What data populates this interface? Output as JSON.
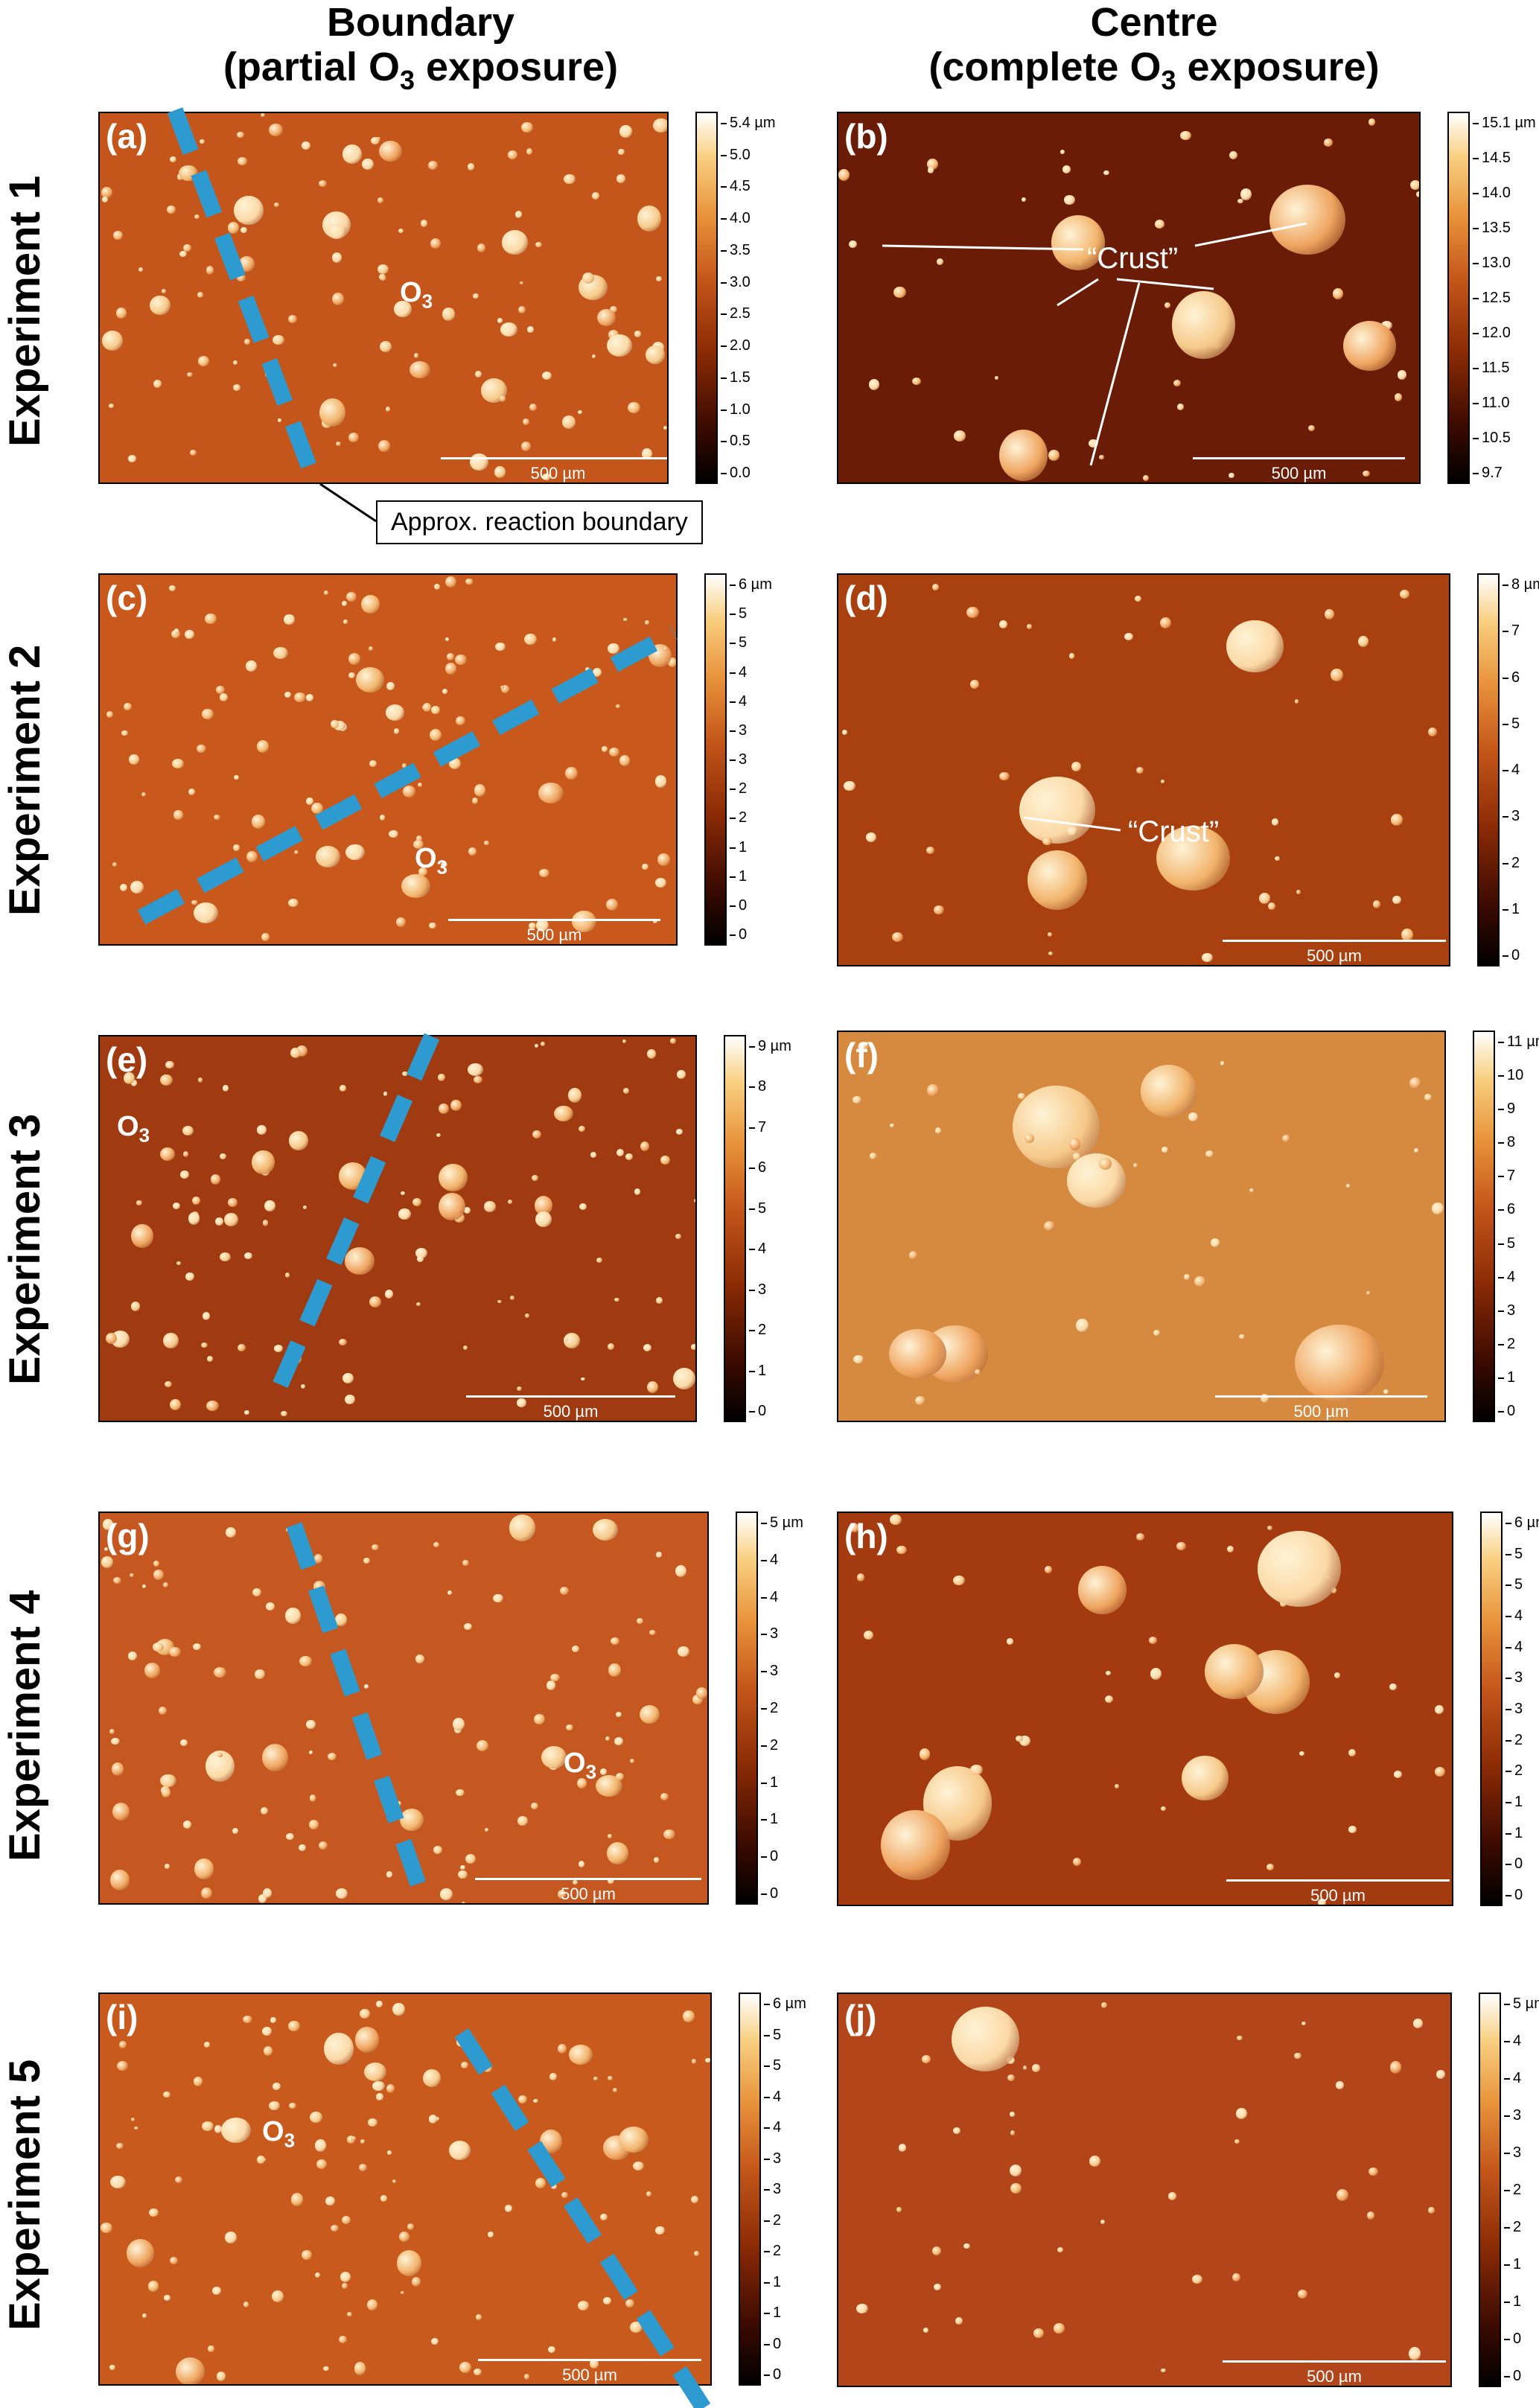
{
  "columns": {
    "left": {
      "line1": "Boundary",
      "line2": "(partial O",
      "sub": "3",
      "line3": " exposure)"
    },
    "right": {
      "line1": "Centre",
      "line2": "(complete O",
      "sub": "3",
      "line3": " exposure)"
    }
  },
  "rows": [
    "Experiment 1",
    "Experiment 2",
    "Experiment 3",
    "Experiment 4",
    "Experiment 5"
  ],
  "annotations": {
    "boundary_label": "Approx. reaction boundary",
    "crust_label": "“Crust”",
    "o3_main": "O",
    "o3_sub": "3"
  },
  "panels": [
    {
      "label": "(a)",
      "scale": "500 µm",
      "cbar_ticks": [
        "5.4 µm",
        "5.0",
        "4.5",
        "4.0",
        "3.5",
        "3.0",
        "2.5",
        "2.0",
        "1.5",
        "1.0",
        "0.5",
        "0.0"
      ],
      "color": "#c4561c"
    },
    {
      "label": "(b)",
      "scale": "500 µm",
      "cbar_ticks": [
        "15.1 µm",
        "14.5",
        "14.0",
        "13.5",
        "13.0",
        "12.5",
        "12.0",
        "11.5",
        "11.0",
        "10.5",
        "9.7"
      ],
      "color": "#6a1c06"
    },
    {
      "label": "(c)",
      "scale": "500 µm",
      "cbar_ticks": [
        "6 µm",
        "5",
        "5",
        "4",
        "4",
        "3",
        "3",
        "2",
        "2",
        "1",
        "1",
        "0",
        "0"
      ],
      "color": "#c8581c"
    },
    {
      "label": "(d)",
      "scale": "500 µm",
      "cbar_ticks": [
        "8 µm",
        "7",
        "6",
        "5",
        "4",
        "3",
        "2",
        "1",
        "0"
      ],
      "color": "#a8400f"
    },
    {
      "label": "(e)",
      "scale": "500 µm",
      "cbar_ticks": [
        "9 µm",
        "8",
        "7",
        "6",
        "5",
        "4",
        "3",
        "2",
        "1",
        "0"
      ],
      "color": "#a03a10"
    },
    {
      "label": "(f)",
      "scale": "500 µm",
      "cbar_ticks": [
        "11 µm",
        "10",
        "9",
        "8",
        "7",
        "6",
        "5",
        "4",
        "3",
        "2",
        "1",
        "0"
      ],
      "color": "#d68a40"
    },
    {
      "label": "(g)",
      "scale": "500 µm",
      "cbar_ticks": [
        "5 µm",
        "4",
        "4",
        "3",
        "3",
        "2",
        "2",
        "1",
        "1",
        "0",
        "0"
      ],
      "color": "#c45820"
    },
    {
      "label": "(h)",
      "scale": "500 µm",
      "cbar_ticks": [
        "6 µm",
        "5",
        "5",
        "4",
        "4",
        "3",
        "3",
        "2",
        "2",
        "1",
        "1",
        "0",
        "0"
      ],
      "color": "#a33a10"
    },
    {
      "label": "(i)",
      "scale": "500 µm",
      "cbar_ticks": [
        "6 µm",
        "5",
        "5",
        "4",
        "4",
        "3",
        "3",
        "2",
        "2",
        "1",
        "1",
        "0",
        "0"
      ],
      "color": "#c85a1e"
    },
    {
      "label": "(j)",
      "scale": "500 µm",
      "cbar_ticks": [
        "5 µm",
        "4",
        "4",
        "3",
        "3",
        "2",
        "2",
        "1",
        "1",
        "0",
        "0"
      ],
      "color": "#b3451a"
    }
  ]
}
